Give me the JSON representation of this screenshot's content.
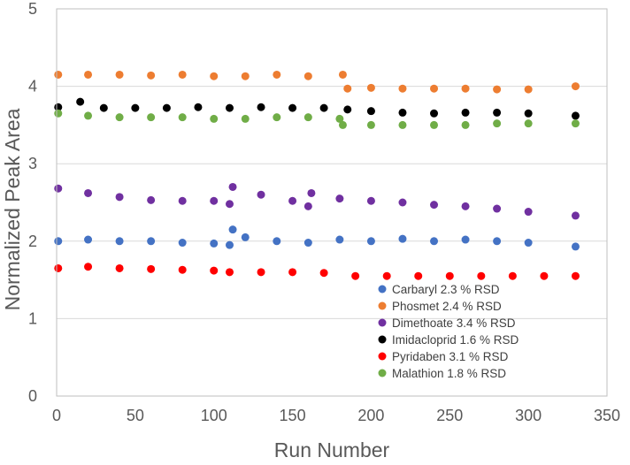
{
  "chart_data": {
    "type": "scatter",
    "xlabel": "Run Number",
    "ylabel": "Normalized Peak Area",
    "xlim": [
      0,
      350
    ],
    "ylim": [
      0,
      5
    ],
    "xticks": [
      0,
      50,
      100,
      150,
      200,
      250,
      300,
      350
    ],
    "yticks": [
      0,
      1,
      2,
      3,
      4,
      5
    ],
    "grid": "horizontal",
    "legend_position": "bottom-right",
    "series": [
      {
        "name": "Carbaryl 2.3 % RSD",
        "color": "#4472C4",
        "x": [
          1,
          20,
          40,
          60,
          80,
          100,
          110,
          112,
          120,
          140,
          160,
          180,
          200,
          220,
          240,
          260,
          280,
          300,
          330
        ],
        "y": [
          2.0,
          2.02,
          2.0,
          2.0,
          1.98,
          1.97,
          1.95,
          2.15,
          2.05,
          2.0,
          1.98,
          2.02,
          2.0,
          2.03,
          2.0,
          2.02,
          2.0,
          1.98,
          1.93
        ]
      },
      {
        "name": "Phosmet 2.4 % RSD",
        "color": "#ED7D31",
        "x": [
          1,
          20,
          40,
          60,
          80,
          100,
          120,
          140,
          160,
          182,
          185,
          200,
          220,
          240,
          260,
          280,
          300,
          330
        ],
        "y": [
          4.15,
          4.15,
          4.15,
          4.14,
          4.15,
          4.13,
          4.13,
          4.15,
          4.13,
          4.15,
          3.97,
          3.98,
          3.97,
          3.97,
          3.97,
          3.96,
          3.96,
          4.0
        ]
      },
      {
        "name": "Dimethoate 3.4 % RSD",
        "color": "#7030A0",
        "x": [
          1,
          20,
          40,
          60,
          80,
          100,
          110,
          112,
          130,
          150,
          160,
          162,
          180,
          200,
          220,
          240,
          260,
          280,
          300,
          330
        ],
        "y": [
          2.68,
          2.62,
          2.57,
          2.53,
          2.52,
          2.52,
          2.48,
          2.7,
          2.6,
          2.52,
          2.45,
          2.62,
          2.55,
          2.52,
          2.5,
          2.47,
          2.45,
          2.42,
          2.38,
          2.33
        ]
      },
      {
        "name": "Imidacloprid 1.6 % RSD",
        "color": "#000000",
        "x": [
          1,
          15,
          30,
          50,
          70,
          90,
          110,
          130,
          150,
          170,
          185,
          200,
          220,
          240,
          260,
          280,
          300,
          330
        ],
        "y": [
          3.73,
          3.8,
          3.72,
          3.72,
          3.72,
          3.73,
          3.72,
          3.73,
          3.72,
          3.72,
          3.7,
          3.68,
          3.66,
          3.65,
          3.66,
          3.66,
          3.65,
          3.62
        ]
      },
      {
        "name": "Pyridaben 3.1 % RSD",
        "color": "#FF0000",
        "x": [
          1,
          20,
          40,
          60,
          80,
          100,
          110,
          130,
          150,
          170,
          190,
          210,
          230,
          250,
          270,
          290,
          310,
          330
        ],
        "y": [
          1.65,
          1.67,
          1.65,
          1.64,
          1.63,
          1.62,
          1.6,
          1.6,
          1.6,
          1.59,
          1.55,
          1.55,
          1.55,
          1.55,
          1.55,
          1.55,
          1.55,
          1.55
        ]
      },
      {
        "name": "Malathion 1.8 % RSD",
        "color": "#70AD47",
        "x": [
          1,
          20,
          40,
          60,
          80,
          100,
          120,
          140,
          160,
          180,
          182,
          200,
          220,
          240,
          260,
          280,
          300,
          330
        ],
        "y": [
          3.65,
          3.62,
          3.6,
          3.6,
          3.6,
          3.58,
          3.58,
          3.6,
          3.6,
          3.58,
          3.5,
          3.5,
          3.5,
          3.5,
          3.5,
          3.52,
          3.52,
          3.52
        ]
      }
    ]
  }
}
